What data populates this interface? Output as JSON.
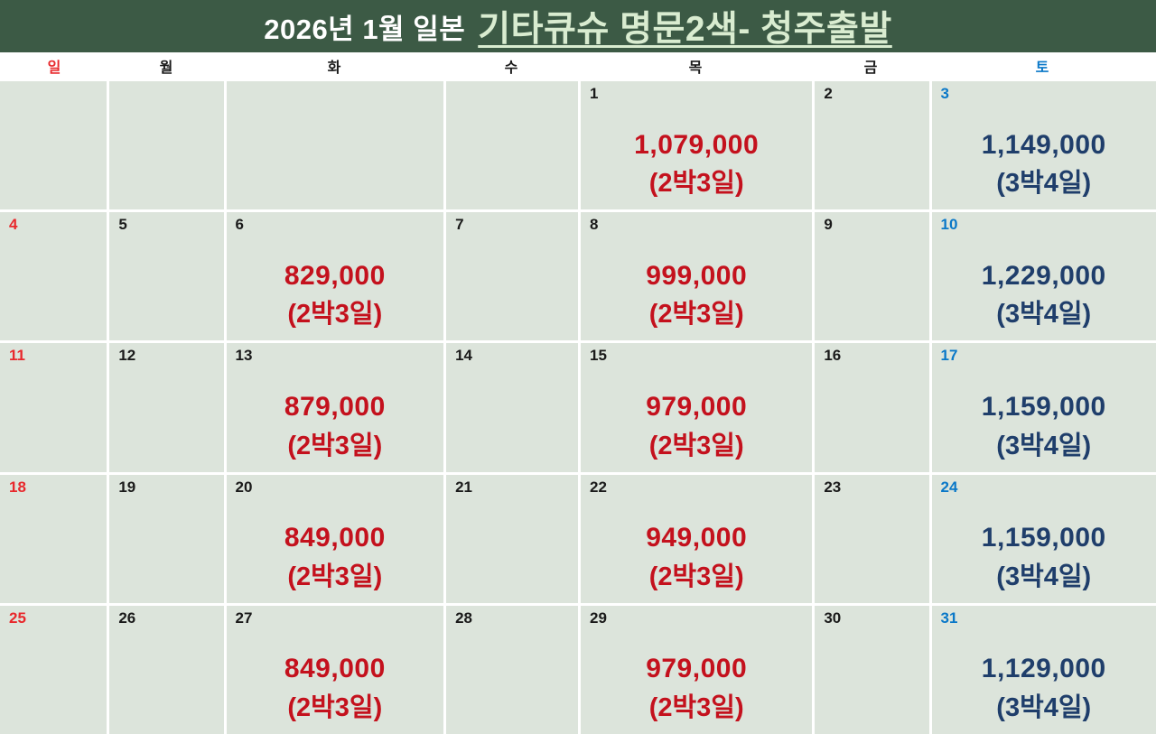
{
  "title": {
    "prefix": "2026년 1월 일본",
    "highlight": "기타큐슈 명문2색- 청주출발"
  },
  "weekdays": [
    {
      "label": "일",
      "type": "sun"
    },
    {
      "label": "월",
      "type": "normal"
    },
    {
      "label": "화",
      "type": "normal"
    },
    {
      "label": "수",
      "type": "normal"
    },
    {
      "label": "목",
      "type": "normal"
    },
    {
      "label": "금",
      "type": "normal"
    },
    {
      "label": "토",
      "type": "sat"
    }
  ],
  "weeks": [
    [
      {
        "day": "",
        "type": "sun"
      },
      {
        "day": "",
        "type": "normal"
      },
      {
        "day": "",
        "type": "normal"
      },
      {
        "day": "",
        "type": "normal"
      },
      {
        "day": "1",
        "type": "normal",
        "price": "1,079,000",
        "duration": "(2박3일)",
        "price_style": "red"
      },
      {
        "day": "2",
        "type": "normal"
      },
      {
        "day": "3",
        "type": "sat",
        "price": "1,149,000",
        "duration": "(3박4일)",
        "price_style": "navy"
      }
    ],
    [
      {
        "day": "4",
        "type": "sun"
      },
      {
        "day": "5",
        "type": "normal"
      },
      {
        "day": "6",
        "type": "normal",
        "price": "829,000",
        "duration": "(2박3일)",
        "price_style": "red"
      },
      {
        "day": "7",
        "type": "normal"
      },
      {
        "day": "8",
        "type": "normal",
        "price": "999,000",
        "duration": "(2박3일)",
        "price_style": "red"
      },
      {
        "day": "9",
        "type": "normal"
      },
      {
        "day": "10",
        "type": "sat",
        "price": "1,229,000",
        "duration": "(3박4일)",
        "price_style": "navy"
      }
    ],
    [
      {
        "day": "11",
        "type": "sun"
      },
      {
        "day": "12",
        "type": "normal"
      },
      {
        "day": "13",
        "type": "normal",
        "price": "879,000",
        "duration": "(2박3일)",
        "price_style": "red"
      },
      {
        "day": "14",
        "type": "normal"
      },
      {
        "day": "15",
        "type": "normal",
        "price": "979,000",
        "duration": "(2박3일)",
        "price_style": "red"
      },
      {
        "day": "16",
        "type": "normal"
      },
      {
        "day": "17",
        "type": "sat",
        "price": "1,159,000",
        "duration": "(3박4일)",
        "price_style": "navy"
      }
    ],
    [
      {
        "day": "18",
        "type": "sun"
      },
      {
        "day": "19",
        "type": "normal"
      },
      {
        "day": "20",
        "type": "normal",
        "price": "849,000",
        "duration": "(2박3일)",
        "price_style": "red"
      },
      {
        "day": "21",
        "type": "normal"
      },
      {
        "day": "22",
        "type": "normal",
        "price": "949,000",
        "duration": "(2박3일)",
        "price_style": "red"
      },
      {
        "day": "23",
        "type": "normal"
      },
      {
        "day": "24",
        "type": "sat",
        "price": "1,159,000",
        "duration": "(3박4일)",
        "price_style": "navy"
      }
    ],
    [
      {
        "day": "25",
        "type": "sun"
      },
      {
        "day": "26",
        "type": "normal"
      },
      {
        "day": "27",
        "type": "normal",
        "price": "849,000",
        "duration": "(2박3일)",
        "price_style": "red"
      },
      {
        "day": "28",
        "type": "normal"
      },
      {
        "day": "29",
        "type": "normal",
        "price": "979,000",
        "duration": "(2박3일)",
        "price_style": "red"
      },
      {
        "day": "30",
        "type": "normal"
      },
      {
        "day": "31",
        "type": "sat",
        "price": "1,129,000",
        "duration": "(3박4일)",
        "price_style": "navy"
      }
    ]
  ],
  "colors": {
    "header_bg": "#3c5a45",
    "title_text": "#ffffff",
    "title_highlight": "#d9ecd0",
    "sunday": "#e8282c",
    "saturday": "#0a78c8",
    "weekday_text": "#1a1a1a",
    "cell_bg": "#dce4db",
    "grid_line": "#ffffff",
    "price_red": "#c4111d",
    "price_navy": "#1f3e6b"
  }
}
